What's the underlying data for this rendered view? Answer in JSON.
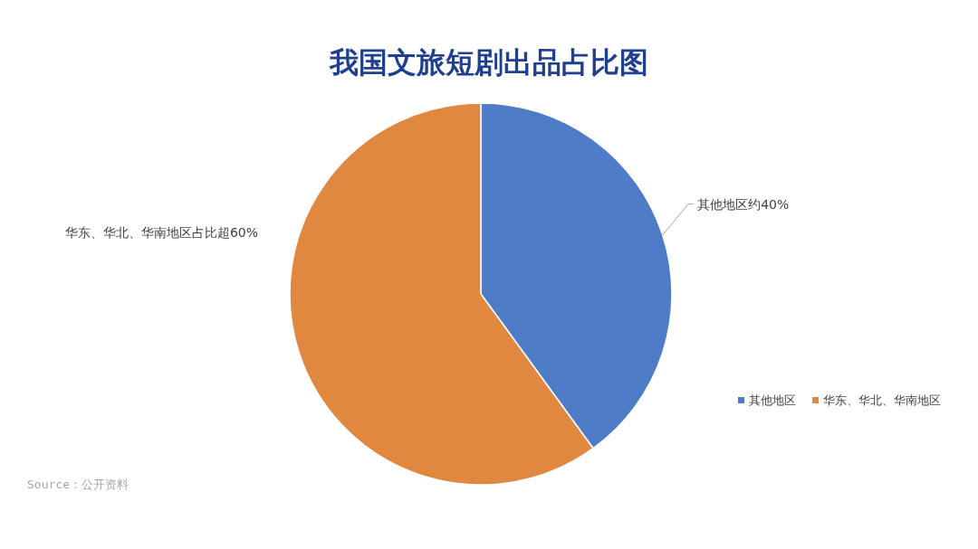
{
  "chart_data": {
    "type": "pie",
    "title": "我国文旅短剧出品占比图",
    "categories": [
      "其他地区",
      "华东、华北、华南地区"
    ],
    "values": [
      40,
      60
    ],
    "colors": [
      "#4f7cc6",
      "#e0883f"
    ],
    "value_labels": [
      "其他地区约40%",
      "华东、华北、华南地区占比超60%"
    ],
    "legend": "bottom right",
    "annotations": [
      "Source：公开资料"
    ]
  }
}
